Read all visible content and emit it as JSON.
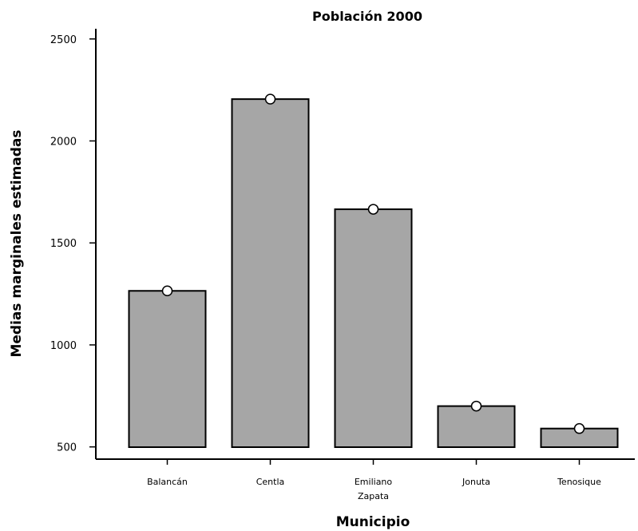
{
  "chart_data": {
    "type": "bar",
    "title": "Población 2000",
    "xlabel": "Municipio",
    "ylabel": "Medias marginales estimadas",
    "categories": [
      [
        "Balancán"
      ],
      [
        "Centla"
      ],
      [
        "Emiliano",
        "Zapata"
      ],
      [
        "Jonuta"
      ],
      [
        "Tenosique"
      ]
    ],
    "values": [
      1265,
      2205,
      1665,
      700,
      590
    ],
    "markers": [
      1265,
      2205,
      1665,
      700,
      590
    ],
    "ylim": [
      440,
      2550
    ],
    "yticks": [
      500,
      1000,
      1500,
      2000,
      2500
    ],
    "grid": false,
    "bar_color": "#a6a6a6",
    "bar_stroke": "#000000",
    "marker_fill": "#ffffff"
  }
}
